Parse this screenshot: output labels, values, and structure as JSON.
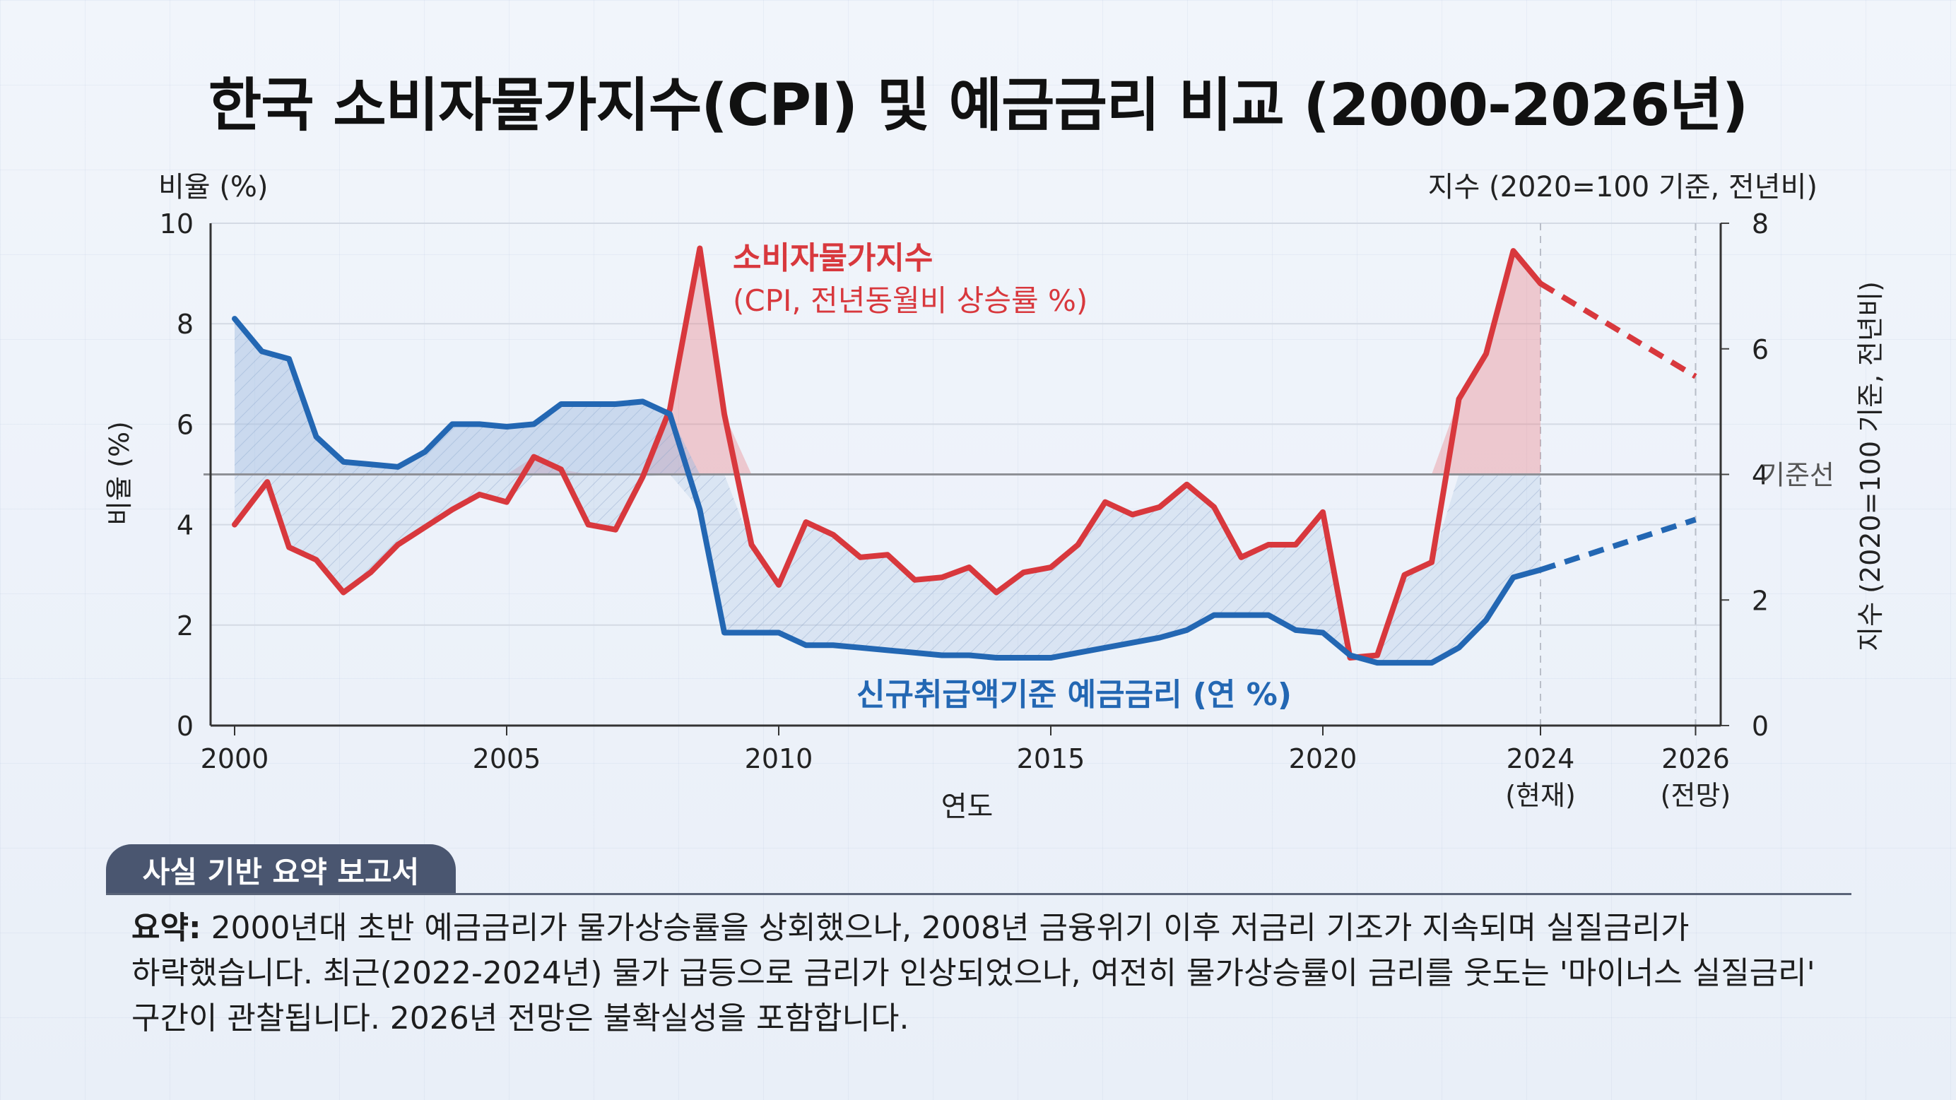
{
  "title": "한국 소비자물가지수(CPI) 및 예금금리 비교 (2000-2026년)",
  "chart_data": {
    "type": "line",
    "title": "한국 소비자물가지수(CPI) 및 예금금리 비교 (2000-2026년)",
    "xlabel": "연도",
    "ylabel_left": "비율 (%)",
    "ylabel_left_top": "비율 (%)",
    "ylabel_right": "지수 (2020=100 기준, 전년비)",
    "ylabel_right_top": "지수 (2020=100 기준, 전년비)",
    "ylim_left": [
      0,
      10
    ],
    "ylim_right": [
      0,
      8
    ],
    "xlim": [
      2000,
      2026
    ],
    "yticks_left": [
      "0",
      "2",
      "4",
      "6",
      "8",
      "10"
    ],
    "yticks_right": [
      "0",
      "2",
      "4",
      "6",
      "8"
    ],
    "xticks": [
      {
        "value": 2000,
        "label": "2000",
        "sub": ""
      },
      {
        "value": 2005,
        "label": "2005",
        "sub": ""
      },
      {
        "value": 2010,
        "label": "2010",
        "sub": ""
      },
      {
        "value": 2015,
        "label": "2015",
        "sub": ""
      },
      {
        "value": 2020,
        "label": "2020",
        "sub": ""
      },
      {
        "value": 2024,
        "label": "2024",
        "sub": "(현재)"
      },
      {
        "value": 2026.85,
        "label": "2026",
        "sub": "(전망)"
      }
    ],
    "reference_line": {
      "value": 5,
      "label": "기준선"
    },
    "series": [
      {
        "name": "소비자물가지수",
        "name_sub": "(CPI, 전년동월비 상승률 %)",
        "color": "#d8383d",
        "x": [
          2000,
          2000.6,
          2001,
          2001.5,
          2002,
          2002.5,
          2003,
          2003.5,
          2004,
          2004.5,
          2005,
          2005.5,
          2006,
          2006.5,
          2007,
          2007.5,
          2008,
          2008.55,
          2009,
          2009.5,
          2010,
          2010.5,
          2011,
          2011.5,
          2012,
          2012.5,
          2013,
          2013.5,
          2014,
          2014.5,
          2015,
          2015.5,
          2016,
          2016.5,
          2017,
          2017.5,
          2018,
          2018.5,
          2019,
          2019.5,
          2020,
          2020.5,
          2021,
          2021.5,
          2022,
          2022.5,
          2023,
          2023.5,
          2024
        ],
        "values": [
          4.0,
          4.85,
          3.55,
          3.3,
          2.65,
          3.05,
          3.6,
          3.95,
          4.3,
          4.6,
          4.45,
          5.35,
          5.1,
          4.0,
          3.9,
          4.95,
          6.3,
          9.5,
          6.2,
          3.6,
          2.8,
          4.05,
          3.8,
          3.35,
          3.4,
          2.9,
          2.95,
          3.15,
          2.65,
          3.05,
          3.15,
          3.6,
          4.45,
          4.2,
          4.35,
          4.8,
          4.35,
          3.35,
          3.6,
          3.6,
          4.25,
          1.35,
          1.4,
          3.0,
          3.25,
          6.5,
          7.4,
          9.45,
          8.8
        ],
        "projection_x": [
          2024,
          2026.85
        ],
        "projection_values": [
          8.8,
          6.95
        ]
      },
      {
        "name": "신규취급액기준 예금금리 (연 %)",
        "color": "#2367b3",
        "x": [
          2000,
          2000.5,
          2001,
          2001.5,
          2002,
          2002.5,
          2003,
          2003.5,
          2004,
          2004.5,
          2005,
          2005.5,
          2006,
          2006.5,
          2007,
          2007.5,
          2008,
          2008.55,
          2009,
          2009.5,
          2010,
          2010.5,
          2011,
          2011.5,
          2012,
          2012.5,
          2013,
          2013.5,
          2014,
          2014.5,
          2015,
          2015.5,
          2016,
          2016.5,
          2017,
          2017.5,
          2018,
          2018.5,
          2019,
          2019.5,
          2020,
          2020.5,
          2021,
          2021.5,
          2022,
          2022.5,
          2023,
          2023.5,
          2024
        ],
        "values": [
          8.1,
          7.45,
          7.3,
          5.75,
          5.25,
          5.2,
          5.15,
          5.45,
          6.0,
          6.0,
          5.95,
          6.0,
          6.4,
          6.4,
          6.4,
          6.45,
          6.2,
          4.3,
          1.85,
          1.85,
          1.85,
          1.6,
          1.6,
          1.55,
          1.5,
          1.45,
          1.4,
          1.4,
          1.35,
          1.35,
          1.35,
          1.45,
          1.55,
          1.65,
          1.75,
          1.9,
          2.2,
          2.2,
          2.2,
          1.9,
          1.85,
          1.4,
          1.25,
          1.25,
          1.25,
          1.55,
          2.1,
          2.95,
          3.1
        ],
        "projection_x": [
          2024,
          2026.85
        ],
        "projection_values": [
          3.1,
          4.1
        ]
      }
    ]
  },
  "report": {
    "tab_label": "사실 기반 요약 보고서",
    "summary_label": "요약:",
    "line1": "2000년대 초반 예금금리가 물가상승률을 상회했으나, 2008년 금융위기 이후 저금리 기조가 지속되며 실질금리가",
    "line2": "하락했습니다. 최근(2022-2024년) 물가 급등으로 금리가 인상되었으나, 여전히 물가상승률이 금리를 웃도는 '마이너스 실질금리'",
    "line3": "구간이 관찰됩니다. 2026년 전망은 불확실성을 포함합니다."
  },
  "colors": {
    "cpi": "#d8383d",
    "rate": "#2367b3",
    "tab": "#4a5670"
  }
}
